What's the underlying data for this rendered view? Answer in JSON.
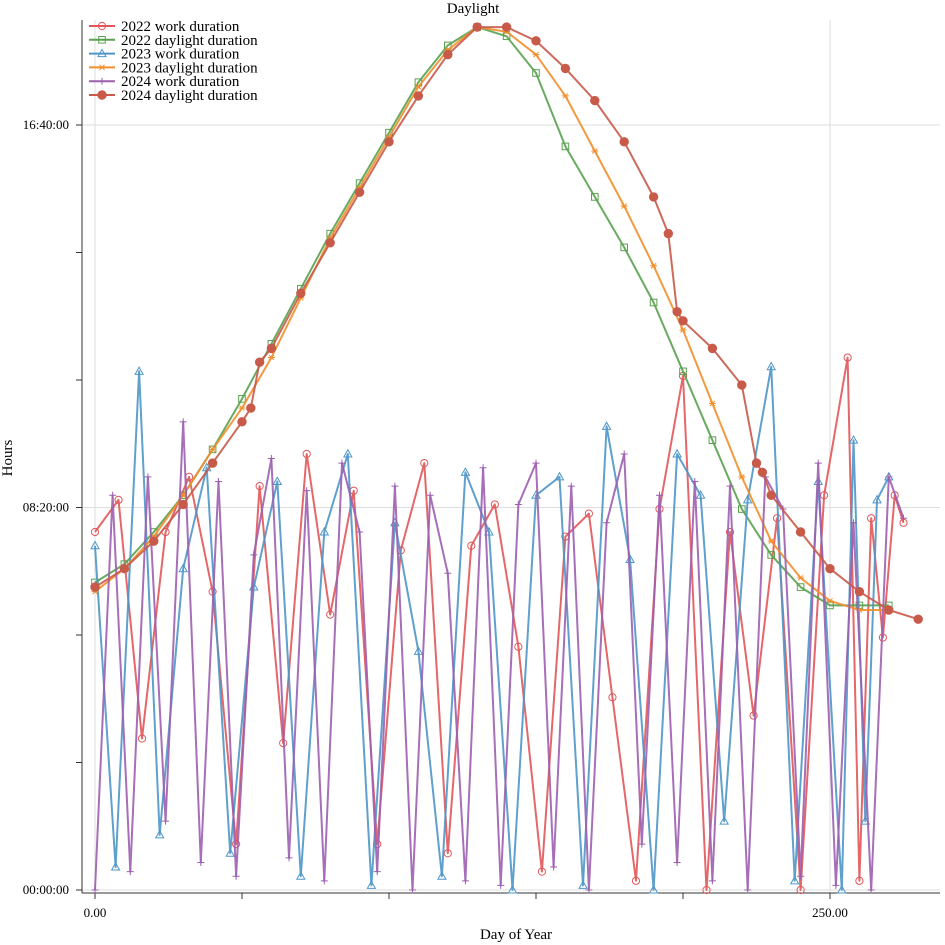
{
  "chart_data": {
    "type": "line",
    "title": "Daylight",
    "xlabel": "Day of Year",
    "ylabel": "Hours",
    "xlim": [
      0,
      275
    ],
    "ylim": [
      0,
      19.5
    ],
    "y_unit": "hours",
    "x_ticks": [
      {
        "value": 0,
        "label": "0.00"
      },
      {
        "value": 250,
        "label": "250.00"
      }
    ],
    "x_minor_ticks": [
      50,
      100,
      150,
      200
    ],
    "y_ticks": [
      {
        "value": 0,
        "label": "00:00:00"
      },
      {
        "value": 8.3333,
        "label": "08:20:00"
      },
      {
        "value": 16.6667,
        "label": "16:40:00"
      }
    ],
    "y_minor_ticks": [
      2.7778,
      5.5556,
      11.1111,
      13.8889
    ],
    "grid": true,
    "legend_position": "top-left",
    "series": [
      {
        "name": "2022 work duration",
        "color": "#e15759",
        "marker": "circle-open",
        "x": [
          0,
          8,
          16,
          24,
          32,
          40,
          48,
          56,
          64,
          72,
          80,
          88,
          96,
          104,
          112,
          120,
          128,
          136,
          144,
          152,
          160,
          168,
          176,
          184,
          192,
          200,
          208,
          216,
          224,
          232,
          240,
          248,
          256,
          260,
          264,
          268,
          272,
          275
        ],
        "values": [
          7.8,
          8.5,
          3.3,
          7.8,
          9.0,
          6.5,
          1.0,
          8.8,
          3.2,
          9.5,
          6.0,
          8.7,
          1.0,
          7.4,
          9.3,
          0.8,
          7.5,
          8.4,
          5.3,
          0.4,
          7.7,
          8.2,
          4.2,
          0.2,
          8.3,
          11.2,
          0.0,
          7.8,
          3.8,
          8.1,
          0.0,
          8.6,
          11.6,
          0.2,
          8.1,
          5.5,
          8.6,
          8.0
        ]
      },
      {
        "name": "2022 daylight duration",
        "color": "#59a14f",
        "marker": "square-open",
        "x": [
          0,
          10,
          20,
          30,
          40,
          50,
          60,
          70,
          80,
          90,
          100,
          110,
          120,
          130,
          140,
          150,
          160,
          170,
          180,
          190,
          200,
          210,
          220,
          230,
          240,
          250,
          260,
          270
        ],
        "values": [
          6.7,
          7.1,
          7.8,
          8.6,
          9.6,
          10.7,
          11.9,
          13.1,
          14.3,
          15.4,
          16.5,
          17.6,
          18.4,
          18.8,
          18.6,
          17.8,
          16.2,
          15.1,
          14.0,
          12.8,
          11.3,
          9.8,
          8.3,
          7.3,
          6.6,
          6.2,
          6.2,
          6.2
        ]
      },
      {
        "name": "2023 work duration",
        "color": "#4e96c8",
        "marker": "triangle-open",
        "x": [
          0,
          7,
          15,
          22,
          30,
          38,
          46,
          54,
          62,
          70,
          78,
          86,
          94,
          102,
          110,
          118,
          126,
          134,
          142,
          150,
          158,
          166,
          174,
          182,
          190,
          198,
          206,
          214,
          222,
          230,
          238,
          246,
          254,
          258,
          262,
          266,
          270
        ],
        "values": [
          7.5,
          0.5,
          11.3,
          1.2,
          7.0,
          9.2,
          0.8,
          6.6,
          8.9,
          0.3,
          7.8,
          9.5,
          0.1,
          8.0,
          5.2,
          0.3,
          9.1,
          7.8,
          0.0,
          8.6,
          9.0,
          0.1,
          10.1,
          7.2,
          0.0,
          9.5,
          8.6,
          1.5,
          8.5,
          11.4,
          0.2,
          8.9,
          0.0,
          9.8,
          1.5,
          8.5,
          9.0
        ]
      },
      {
        "name": "2023 daylight duration",
        "color": "#f28e2b",
        "marker": "star",
        "x": [
          0,
          10,
          20,
          30,
          40,
          50,
          60,
          70,
          80,
          90,
          100,
          110,
          120,
          130,
          140,
          150,
          160,
          170,
          180,
          190,
          200,
          210,
          220,
          230,
          240,
          250,
          260,
          270
        ],
        "values": [
          6.5,
          7.0,
          7.7,
          8.6,
          9.6,
          10.5,
          11.6,
          12.9,
          14.2,
          15.3,
          16.4,
          17.5,
          18.3,
          18.8,
          18.7,
          18.2,
          17.3,
          16.1,
          14.9,
          13.6,
          12.2,
          10.6,
          9.0,
          7.6,
          6.8,
          6.3,
          6.1,
          6.1
        ]
      },
      {
        "name": "2024 work duration",
        "color": "#9c5fb0",
        "marker": "plus",
        "x": [
          0,
          6,
          12,
          18,
          24,
          30,
          36,
          42,
          48,
          54,
          60,
          66,
          72,
          78,
          84,
          90,
          96,
          102,
          108,
          114,
          120,
          126,
          132,
          138,
          144,
          150,
          156,
          162,
          168,
          174,
          180,
          186,
          192,
          198,
          204,
          210,
          216,
          222,
          228,
          234,
          240,
          246,
          252,
          258,
          264,
          270,
          275
        ],
        "values": [
          0.0,
          8.6,
          0.4,
          9.0,
          1.5,
          10.2,
          0.6,
          8.9,
          0.3,
          7.3,
          9.4,
          0.7,
          8.7,
          0.2,
          9.3,
          7.8,
          0.4,
          8.8,
          0.0,
          8.6,
          6.9,
          0.2,
          9.2,
          0.1,
          8.4,
          9.3,
          0.5,
          8.8,
          0.0,
          8.0,
          9.5,
          1.0,
          8.6,
          0.6,
          8.9,
          0.2,
          8.8,
          0.0,
          9.0,
          8.3,
          0.3,
          9.3,
          0.1,
          8.0,
          0.0,
          9.0,
          8.1
        ]
      },
      {
        "name": "2024 daylight duration",
        "color": "#c85a4a",
        "marker": "circle-filled",
        "x": [
          0,
          10,
          20,
          30,
          40,
          50,
          53,
          56,
          60,
          70,
          80,
          90,
          100,
          110,
          120,
          130,
          140,
          150,
          160,
          170,
          180,
          190,
          195,
          198,
          200,
          210,
          220,
          225,
          227,
          230,
          240,
          250,
          260,
          270,
          280
        ],
        "values": [
          6.6,
          7.0,
          7.6,
          8.4,
          9.3,
          10.2,
          10.5,
          11.5,
          11.8,
          13.0,
          14.1,
          15.2,
          16.3,
          17.3,
          18.2,
          18.8,
          18.8,
          18.5,
          17.9,
          17.2,
          16.3,
          15.1,
          14.3,
          12.6,
          12.4,
          11.8,
          11.0,
          9.3,
          9.1,
          8.6,
          7.8,
          7.0,
          6.5,
          6.1,
          5.9
        ]
      }
    ]
  }
}
